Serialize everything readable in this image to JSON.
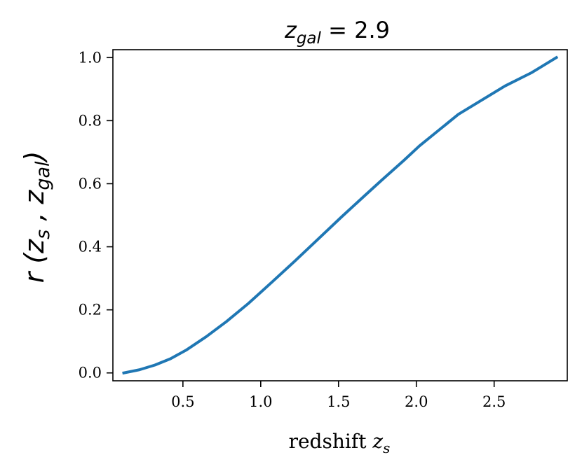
{
  "chart_data": {
    "type": "line",
    "title": {
      "var": "z",
      "sub": "gal",
      "rest": " = 2.9"
    },
    "xlabel": {
      "text": "redshift ",
      "var": "z",
      "sub": "s"
    },
    "ylabel": {
      "r": "r",
      "open": " (",
      "z1": "z",
      "s1": "s",
      "comma": " , ",
      "z2": "z",
      "s2": "gal",
      "close": ")"
    },
    "xlim": [
      0.05,
      2.97
    ],
    "ylim": [
      -0.025,
      1.025
    ],
    "xticks": [
      0.5,
      1.0,
      1.5,
      2.0,
      2.5
    ],
    "xtick_labels": [
      "0.5",
      "1.0",
      "1.5",
      "2.0",
      "2.5"
    ],
    "yticks": [
      0.0,
      0.2,
      0.4,
      0.6,
      0.8,
      1.0
    ],
    "ytick_labels": [
      "0.0",
      "0.2",
      "0.4",
      "0.6",
      "0.8",
      "1.0"
    ],
    "grid": false,
    "series": [
      {
        "color": "#1f77b4",
        "x": [
          0.12,
          0.22,
          0.32,
          0.42,
          0.52,
          0.65,
          0.78,
          0.92,
          1.07,
          1.22,
          1.37,
          1.52,
          1.67,
          1.77,
          1.92,
          2.02,
          2.12,
          2.27,
          2.42,
          2.57,
          2.74,
          2.9
        ],
        "y": [
          0.0,
          0.01,
          0.025,
          0.045,
          0.072,
          0.115,
          0.163,
          0.22,
          0.287,
          0.355,
          0.425,
          0.495,
          0.563,
          0.608,
          0.674,
          0.72,
          0.76,
          0.82,
          0.865,
          0.91,
          0.952,
          1.0
        ]
      }
    ]
  }
}
